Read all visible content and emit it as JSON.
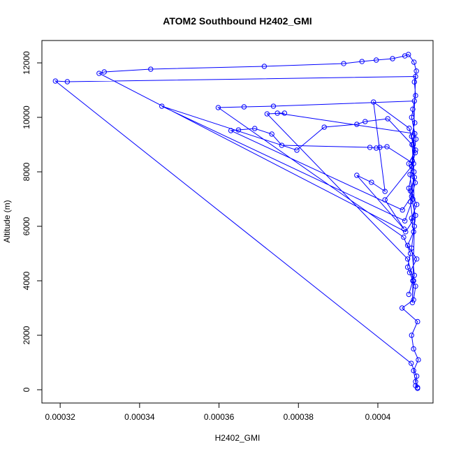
{
  "chart_data": {
    "type": "line",
    "title": "ATOM2 Southbound H2402_GMI",
    "x_label": "H2402_GMI",
    "y_label": "Altitude (m)",
    "xlim": [
      0.0003154,
      0.0004139
    ],
    "ylim": [
      -487,
      12821
    ],
    "xticks": [
      0.00032,
      0.00034,
      0.00036,
      0.00038,
      0.0004
    ],
    "yticks": [
      0,
      2000,
      4000,
      6000,
      8000,
      10000,
      12000
    ],
    "x": [
      0.00041,
      0.0004095,
      0.000409,
      0.0004102,
      0.000409,
      0.0004085,
      0.00041,
      0.0004061,
      0.000409,
      0.0004095,
      0.000408,
      0.0004098,
      0.0004075,
      0.000409,
      0.0004085,
      0.0004098,
      0.0004082,
      0.0004092,
      0.0004078,
      0.0004095,
      0.0004085,
      0.0004093,
      0.0004088,
      0.0004095,
      0.0004092,
      0.0004097,
      0.0004091,
      0.0004077,
      0.0004068,
      0.0004037,
      0.0003996,
      0.000396,
      0.0003914,
      0.0003714,
      0.0003428,
      0.0003311,
      0.0003298,
      0.000407,
      0.0004088,
      0.0004082,
      0.0004094,
      0.0004087,
      0.0004096,
      0.0004085,
      0.0004092,
      0.0003737,
      0.0003663,
      0.0003598,
      0.0004065,
      0.0004082,
      0.0004075,
      0.0004088,
      0.0004078,
      0.0004092,
      0.0004085,
      0.0004095,
      0.0004078,
      0.000409,
      0.0004023,
      0.0004005,
      0.0003996,
      0.000398,
      0.0003758,
      0.0003733,
      0.000369,
      0.0003649,
      0.000363,
      0.0004062,
      0.0004085,
      0.0004091,
      0.0004086,
      0.0004025,
      0.0003968,
      0.0003947,
      0.0003865,
      0.0003796,
      0.0003456,
      0.0004068,
      0.0004088,
      0.0004081,
      0.0004094,
      0.0004079,
      0.0003989,
      0.0004018,
      0.0003984,
      0.0003947,
      0.0004066,
      0.0004018,
      0.0004085,
      0.0004093,
      0.0003747,
      0.0003765,
      0.0003721,
      0.0004075,
      0.000409,
      0.0004087,
      0.0004092,
      0.0004089,
      0.0004095,
      0.0003218,
      0.0003188,
      0.0004084,
      0.0004098,
      0.0004095,
      0.00041
    ],
    "series": [
      {
        "color": "#0000ff",
        "values": [
          80,
          300,
          700,
          1100,
          1500,
          2000,
          2500,
          3000,
          3300,
          3800,
          4300,
          4800,
          5300,
          5800,
          6300,
          6800,
          7300,
          7800,
          8300,
          8800,
          9300,
          9800,
          10300,
          10800,
          11300,
          11700,
          12026,
          12308,
          12256,
          12154,
          12103,
          12051,
          11974,
          11872,
          11769,
          11667,
          11615,
          5800,
          6200,
          6900,
          7600,
          8400,
          9200,
          10000,
          10600,
          10410,
          10385,
          10359,
          5600,
          5000,
          4500,
          4000,
          3500,
          4200,
          5200,
          6400,
          7400,
          8300,
          8923,
          8897,
          8872,
          8897,
          8974,
          9385,
          9590,
          9538,
          9513,
          6600,
          7100,
          8000,
          9000,
          9949,
          9846,
          9744,
          9641,
          8795,
          10410,
          6200,
          7000,
          7900,
          8700,
          9600,
          10564,
          7282,
          7615,
          7872,
          5900,
          6974,
          8200,
          9400,
          10154,
          10154,
          10128,
          4800,
          4000,
          3200,
          6000,
          9000,
          11500,
          11308,
          11333,
          970,
          500,
          150,
          50
        ]
      }
    ]
  }
}
